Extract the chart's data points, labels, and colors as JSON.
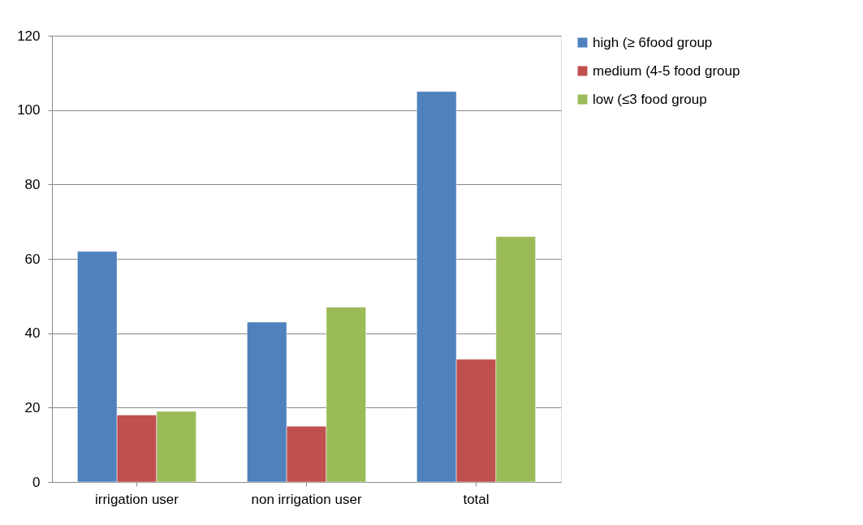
{
  "chart_data": {
    "type": "bar",
    "categories": [
      "irrigation user",
      "non irrigation user",
      "total"
    ],
    "series": [
      {
        "name": "high (≥ 6food group",
        "color": "#4f81bd",
        "values": [
          62,
          43,
          105
        ]
      },
      {
        "name": "medium (4-5 food group",
        "color": "#c0504d",
        "values": [
          18,
          15,
          33
        ]
      },
      {
        "name": "low (≤3 food group",
        "color": "#9bbb59",
        "values": [
          19,
          47,
          66
        ]
      }
    ],
    "ylim": [
      0,
      120
    ],
    "yticks": [
      0,
      20,
      40,
      60,
      80,
      100,
      120
    ],
    "grid": "y",
    "legend": "right"
  }
}
